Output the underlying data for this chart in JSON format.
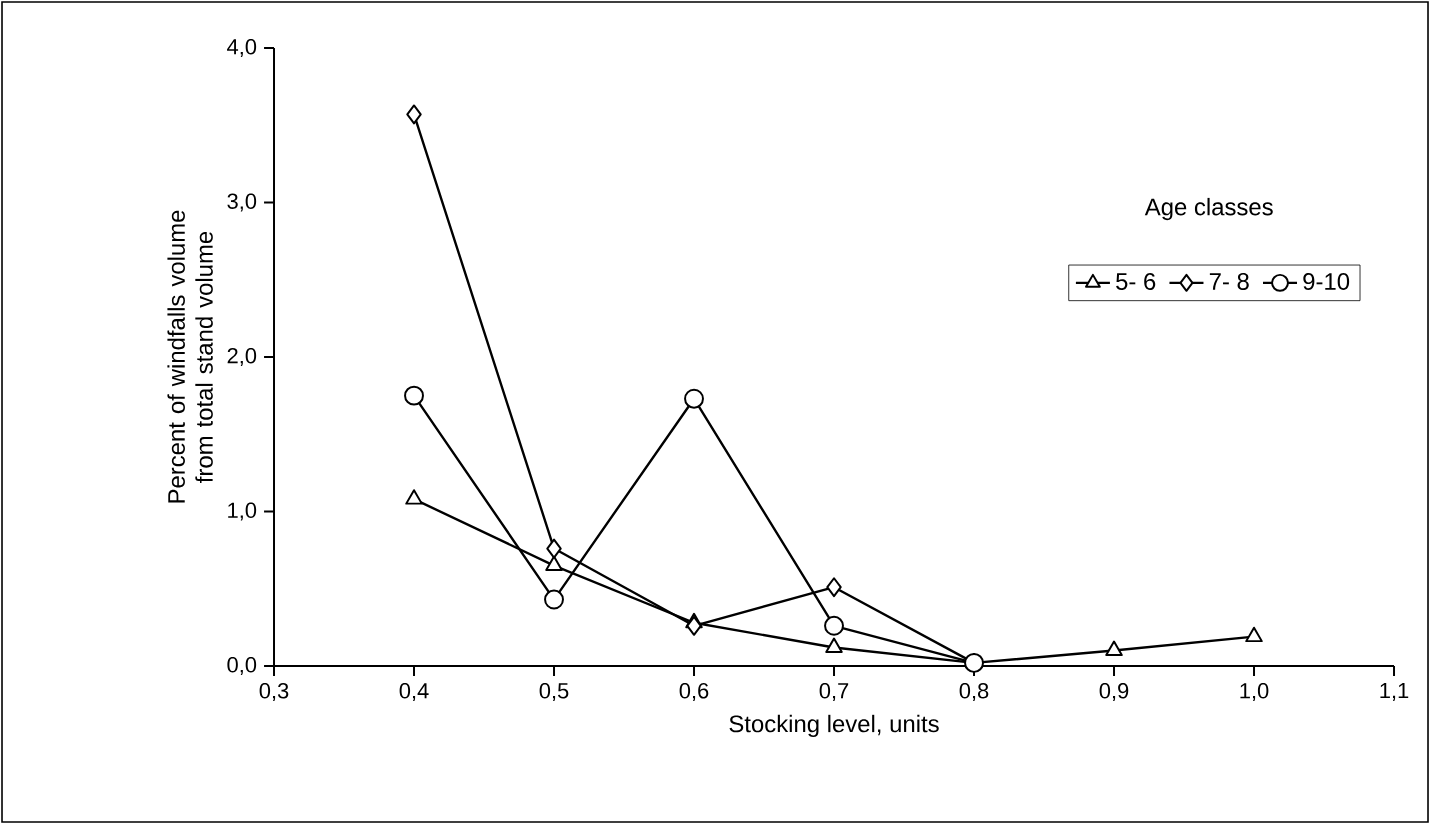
{
  "chart_data": {
    "type": "line",
    "xlabel": "Stocking level, units",
    "ylabel": "Percent of windfalls volume from total stand volume",
    "legend_title": "Age classes",
    "legend": "right",
    "grid": false,
    "line_style": "solid",
    "xlim": [
      0.3,
      1.1
    ],
    "xticks": [
      {
        "value": 0.3,
        "label": "0,3"
      },
      {
        "value": 0.4,
        "label": "0,4"
      },
      {
        "value": 0.5,
        "label": "0,5"
      },
      {
        "value": 0.6,
        "label": "0,6"
      },
      {
        "value": 0.7,
        "label": "0,7"
      },
      {
        "value": 0.8,
        "label": "0,8"
      },
      {
        "value": 0.9,
        "label": "0,9"
      },
      {
        "value": 1.0,
        "label": "1,0"
      },
      {
        "value": 1.1,
        "label": "1,1"
      }
    ],
    "ylim": [
      0,
      4
    ],
    "yticks": [
      {
        "value": 0,
        "label": "0,0"
      },
      {
        "value": 1,
        "label": "1,0"
      },
      {
        "value": 2,
        "label": "2,0"
      },
      {
        "value": 3,
        "label": "3,0"
      },
      {
        "value": 4,
        "label": "4,0"
      }
    ],
    "series": [
      {
        "name": "5- 6",
        "color": "#000000",
        "marker": "triangle",
        "x": [
          0.4,
          0.5,
          0.6,
          0.7,
          0.8,
          0.9,
          1.0
        ],
        "values": [
          1.08,
          0.65,
          0.28,
          0.12,
          0.02,
          0.1,
          0.19
        ]
      },
      {
        "name": "7- 8",
        "color": "#000000",
        "marker": "diamond",
        "x": [
          0.4,
          0.5,
          0.6,
          0.7,
          0.8
        ],
        "values": [
          3.57,
          0.76,
          0.26,
          0.51,
          0.02
        ]
      },
      {
        "name": "9-10",
        "color": "#000000",
        "marker": "circle",
        "x": [
          0.4,
          0.5,
          0.6,
          0.7,
          0.8
        ],
        "values": [
          1.75,
          0.43,
          1.73,
          0.26,
          0.02
        ]
      }
    ]
  }
}
